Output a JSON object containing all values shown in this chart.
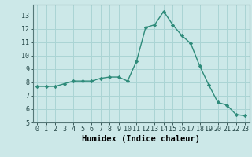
{
  "x": [
    0,
    1,
    2,
    3,
    4,
    5,
    6,
    7,
    8,
    9,
    10,
    11,
    12,
    13,
    14,
    15,
    16,
    17,
    18,
    19,
    20,
    21,
    22,
    23
  ],
  "y": [
    7.7,
    7.7,
    7.7,
    7.9,
    8.1,
    8.1,
    8.1,
    8.3,
    8.4,
    8.4,
    8.1,
    9.6,
    12.1,
    12.3,
    13.3,
    12.3,
    11.5,
    10.9,
    9.2,
    7.8,
    6.5,
    6.3,
    5.6,
    5.5
  ],
  "line_color": "#2e8b7a",
  "marker": "D",
  "marker_size": 2.2,
  "bg_color": "#cce8e8",
  "grid_color": "#aad4d4",
  "xlabel": "Humidex (Indice chaleur)",
  "xlim": [
    -0.5,
    23.5
  ],
  "ylim": [
    5,
    13.8
  ],
  "yticks": [
    5,
    6,
    7,
    8,
    9,
    10,
    11,
    12,
    13
  ],
  "xticks": [
    0,
    1,
    2,
    3,
    4,
    5,
    6,
    7,
    8,
    9,
    10,
    11,
    12,
    13,
    14,
    15,
    16,
    17,
    18,
    19,
    20,
    21,
    22,
    23
  ],
  "tick_fontsize": 6.0,
  "xlabel_fontsize": 7.5,
  "line_width": 1.0
}
